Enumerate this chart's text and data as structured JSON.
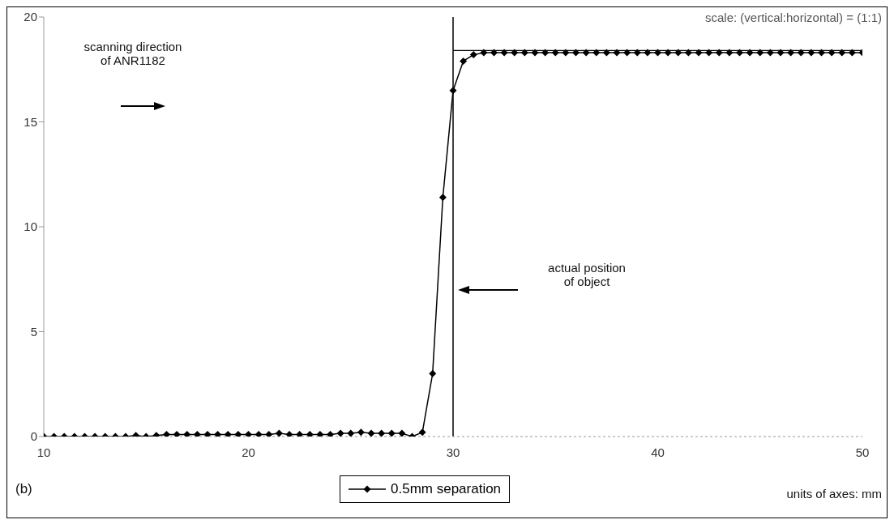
{
  "chart_data": {
    "type": "line",
    "xlim": [
      10,
      50
    ],
    "ylim": [
      0,
      20
    ],
    "xticks": [
      10,
      20,
      30,
      40,
      50
    ],
    "yticks": [
      0,
      5,
      10,
      15,
      20
    ],
    "grid": false,
    "legend": "bottom",
    "marker": "diamond",
    "line_style": "solid",
    "x": [
      10,
      10.5,
      11,
      11.5,
      12,
      12.5,
      13,
      13.5,
      14,
      14.5,
      15,
      15.5,
      16,
      16.5,
      17,
      17.5,
      18,
      18.5,
      19,
      19.5,
      20,
      20.5,
      21,
      21.5,
      22,
      22.5,
      23,
      23.5,
      24,
      24.5,
      25,
      25.5,
      26,
      26.5,
      27,
      27.5,
      28,
      28.5,
      29,
      29.5,
      30,
      30.5,
      31,
      31.5,
      32,
      32.5,
      33,
      33.5,
      34,
      34.5,
      35,
      35.5,
      36,
      36.5,
      37,
      37.5,
      38,
      38.5,
      39,
      39.5,
      40,
      40.5,
      41,
      41.5,
      42,
      42.5,
      43,
      43.5,
      44,
      44.5,
      45,
      45.5,
      46,
      46.5,
      47,
      47.5,
      48,
      48.5,
      49,
      49.5,
      50
    ],
    "series": [
      {
        "name": "0.5mm separation",
        "color": "#000000",
        "values": [
          0,
          0,
          0,
          0,
          0,
          0,
          0,
          0,
          0,
          0.05,
          0,
          0.05,
          0.1,
          0.1,
          0.1,
          0.1,
          0.1,
          0.1,
          0.1,
          0.1,
          0.1,
          0.1,
          0.1,
          0.15,
          0.1,
          0.1,
          0.1,
          0.1,
          0.1,
          0.15,
          0.15,
          0.2,
          0.15,
          0.15,
          0.15,
          0.15,
          0,
          0.2,
          3.0,
          11.4,
          16.5,
          17.9,
          18.2,
          18.3,
          18.3,
          18.3,
          18.3,
          18.3,
          18.3,
          18.3,
          18.3,
          18.3,
          18.3,
          18.3,
          18.3,
          18.3,
          18.3,
          18.3,
          18.3,
          18.3,
          18.3,
          18.3,
          18.3,
          18.3,
          18.3,
          18.3,
          18.3,
          18.3,
          18.3,
          18.3,
          18.3,
          18.3,
          18.3,
          18.3,
          18.3,
          18.3,
          18.3,
          18.3,
          18.3,
          18.3,
          18.3
        ]
      },
      {
        "type": "line",
        "color": "#000000",
        "marker": "none",
        "x": [
          30,
          50
        ],
        "values": [
          18.4,
          18.4
        ]
      }
    ],
    "ref_lines": [
      {
        "axis": "x",
        "value": 30,
        "color": "#000000",
        "line_style": "solid"
      }
    ],
    "annotations": [
      "scale: (vertical:horizontal) = (1:1)",
      "scanning direction\nof ANR1182",
      "actual position\nof object",
      "(b)",
      "units of axes: mm"
    ]
  }
}
